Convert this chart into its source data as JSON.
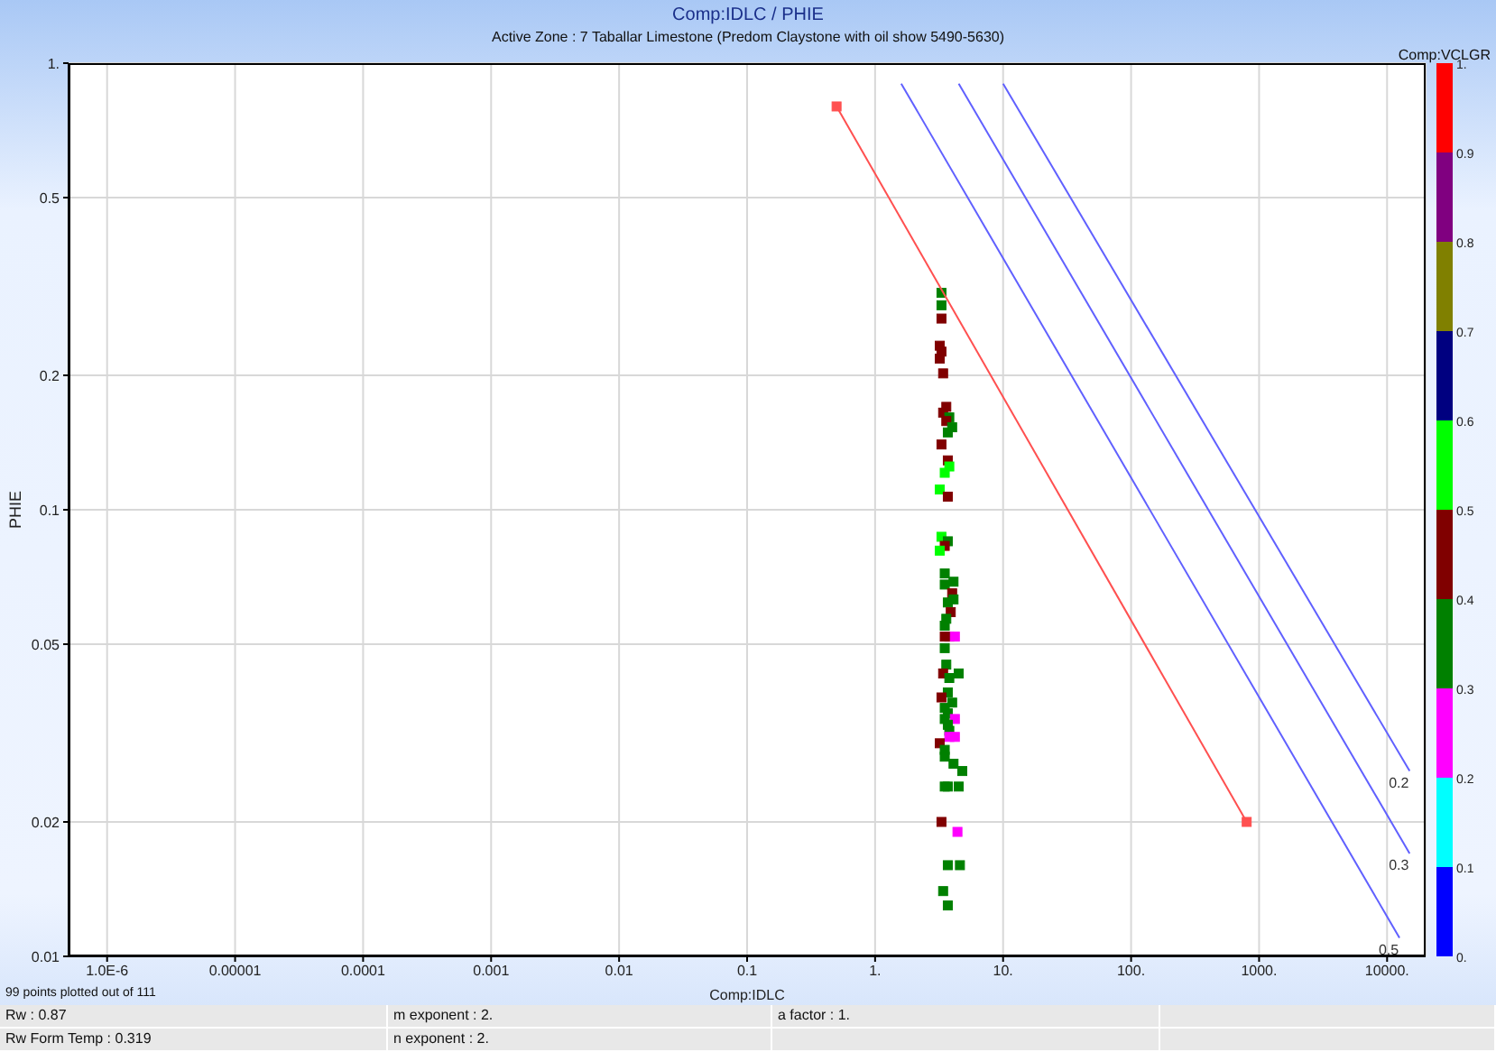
{
  "chart_data": {
    "type": "scatter",
    "title": "Comp:IDLC / PHIE",
    "subtitle": "Active Zone : 7  Taballar Limestone (Predom Claystone with oil show 5490-5630)",
    "xlabel": "Comp:IDLC",
    "ylabel": "PHIE",
    "clabel": "Comp:VCLGR",
    "log": "xy",
    "grid": true,
    "legend": false,
    "xlim": [
      5e-07,
      20000
    ],
    "xticks": [
      {
        "value": 1e-06,
        "label": "1.0E-6"
      },
      {
        "value": 1e-05,
        "label": "0.00001"
      },
      {
        "value": 0.0001,
        "label": "0.0001"
      },
      {
        "value": 0.001,
        "label": "0.001"
      },
      {
        "value": 0.01,
        "label": "0.01"
      },
      {
        "value": 0.1,
        "label": "0.1"
      },
      {
        "value": 1,
        "label": "1."
      },
      {
        "value": 10,
        "label": "10."
      },
      {
        "value": 100,
        "label": "100."
      },
      {
        "value": 1000,
        "label": "1000."
      },
      {
        "value": 10000,
        "label": "10000."
      }
    ],
    "ylim": [
      0.01,
      1
    ],
    "yticks": [
      {
        "value": 0.01,
        "label": "0.01"
      },
      0.02,
      0.05,
      0.1,
      0.2,
      0.5,
      {
        "value": 1,
        "label": "1."
      }
    ],
    "clim": [
      0,
      1
    ],
    "cticks": [
      {
        "value": 0,
        "label": "0."
      },
      0.1,
      0.2,
      0.3,
      0.4,
      0.5,
      0.6,
      0.7,
      0.8,
      0.9,
      {
        "value": 1,
        "label": "1."
      }
    ],
    "series": [
      {
        "type": "scatter",
        "marker": "square",
        "x": [
          3.3,
          3.3,
          3.3,
          3.2,
          3.3,
          3.2,
          3.4,
          3.6,
          3.4,
          3.8,
          3.6,
          4.0,
          3.7,
          3.3,
          3.7,
          3.8,
          3.5,
          3.2,
          3.7,
          3.3,
          3.7,
          3.5,
          3.2,
          3.5,
          4.1,
          3.5,
          4.0,
          4.1,
          3.7,
          3.9,
          3.6,
          3.5,
          3.5,
          3.8,
          4.2,
          3.5,
          3.6,
          3.4,
          4.5,
          3.8,
          3.7,
          3.3,
          4.0,
          3.5,
          3.7,
          3.5,
          4.2,
          3.7,
          3.8,
          4.2,
          3.8,
          3.2,
          3.5,
          3.5,
          4.1,
          4.8,
          3.5,
          3.7,
          4.5,
          3.3,
          4.4,
          3.7,
          4.6,
          3.4,
          3.7
        ],
        "values": [
          0.306,
          0.287,
          0.268,
          0.233,
          0.226,
          0.218,
          0.202,
          0.17,
          0.165,
          0.161,
          0.158,
          0.153,
          0.149,
          0.14,
          0.129,
          0.125,
          0.121,
          0.111,
          0.107,
          0.087,
          0.085,
          0.083,
          0.081,
          0.072,
          0.069,
          0.068,
          0.065,
          0.063,
          0.062,
          0.059,
          0.057,
          0.055,
          0.052,
          0.052,
          0.052,
          0.049,
          0.045,
          0.043,
          0.043,
          0.042,
          0.039,
          0.038,
          0.037,
          0.036,
          0.035,
          0.034,
          0.034,
          0.033,
          0.032,
          0.031,
          0.031,
          0.03,
          0.029,
          0.028,
          0.027,
          0.026,
          0.024,
          0.024,
          0.024,
          0.02,
          0.019,
          0.016,
          0.016,
          0.014,
          0.013
        ],
        "colors": [
          "#008000",
          "#008000",
          "#800000",
          "#800000",
          "#800000",
          "#800000",
          "#800000",
          "#800000",
          "#800000",
          "#008000",
          "#800000",
          "#008000",
          "#008000",
          "#800000",
          "#800000",
          "#00ff00",
          "#00ff00",
          "#00ff00",
          "#800000",
          "#00ff00",
          "#008000",
          "#800000",
          "#00ff00",
          "#008000",
          "#008000",
          "#008000",
          "#800000",
          "#008000",
          "#008000",
          "#800000",
          "#008000",
          "#008000",
          "#800000",
          "#800000",
          "#ff00ff",
          "#008000",
          "#008000",
          "#800000",
          "#008000",
          "#008000",
          "#008000",
          "#800000",
          "#008000",
          "#008000",
          "#008000",
          "#008000",
          "#ff00ff",
          "#008000",
          "#008000",
          "#ff00ff",
          "#ff00ff",
          "#800000",
          "#008000",
          "#008000",
          "#008000",
          "#008000",
          "#008000",
          "#008000",
          "#008000",
          "#800000",
          "#ff00ff",
          "#008000",
          "#008000",
          "#008000",
          "#008000"
        ]
      },
      {
        "type": "line",
        "color": "#ff5050",
        "marker": "square",
        "x": [
          0.5,
          800
        ],
        "values": [
          0.8,
          0.02
        ]
      },
      {
        "type": "line",
        "name": "0.2",
        "color": "#6060ff",
        "marker": "none",
        "x": [
          10,
          15000
        ],
        "values": [
          0.9,
          0.026
        ]
      },
      {
        "type": "line",
        "name": "0.3",
        "color": "#6060ff",
        "marker": "none",
        "x": [
          4.5,
          15000
        ],
        "values": [
          0.9,
          0.017
        ]
      },
      {
        "type": "line",
        "name": "0.5",
        "color": "#6060ff",
        "marker": "none",
        "x": [
          1.6,
          12500
        ],
        "values": [
          0.9,
          0.011
        ]
      }
    ],
    "annotations": [
      "99 points plotted out of 111",
      "Rw : 0.87",
      "m exponent : 2.",
      "a factor : 1.",
      "Rw Form Temp : 0.319",
      "n exponent : 2."
    ]
  }
}
